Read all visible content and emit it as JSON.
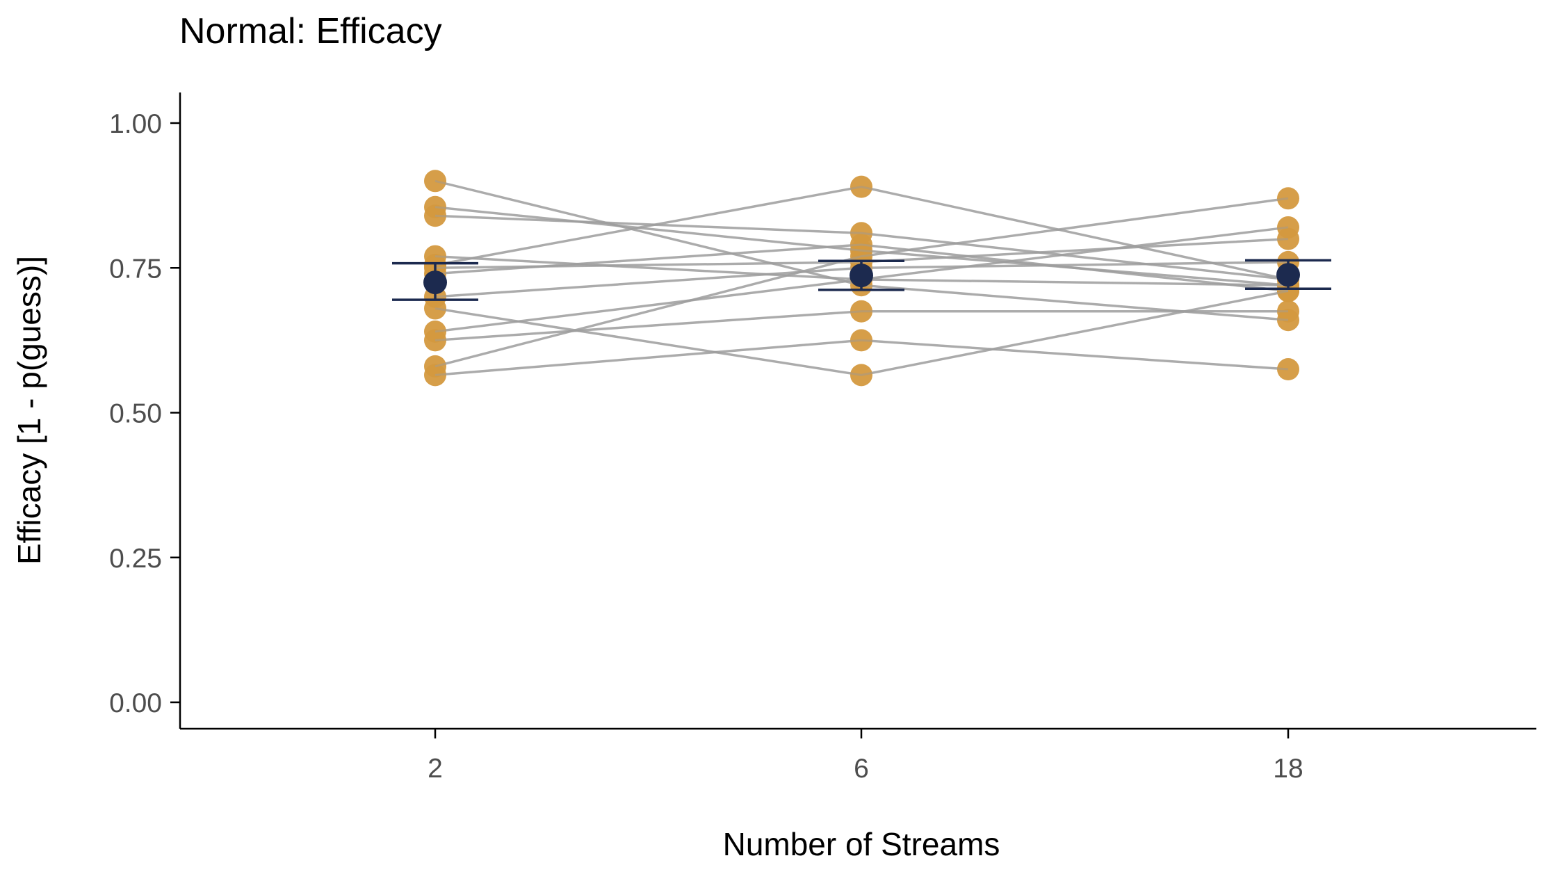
{
  "chart_data": {
    "type": "scatter",
    "title": "Normal: Efficacy",
    "xlabel": "Number of Streams",
    "ylabel": "Efficacy [1 - p(guess)]",
    "categories": [
      "2",
      "6",
      "18"
    ],
    "yticks": [
      "0.00",
      "0.25",
      "0.50",
      "0.75",
      "1.00"
    ],
    "ytick_values": [
      0,
      0.25,
      0.5,
      0.75,
      1.0
    ],
    "ylim": [
      -0.05,
      1.05
    ],
    "grid": false,
    "legend": "none",
    "colors": {
      "participant_point": "#d4993f",
      "participant_line": "#9e9e9e",
      "mean": "#1c2a4f"
    },
    "participants": [
      {
        "values": [
          0.9,
          0.72,
          0.66
        ]
      },
      {
        "values": [
          0.855,
          0.78,
          0.72
        ]
      },
      {
        "values": [
          0.84,
          0.81,
          0.73
        ]
      },
      {
        "values": [
          0.77,
          0.73,
          0.72
        ]
      },
      {
        "values": [
          0.755,
          0.89,
          0.73
        ]
      },
      {
        "values": [
          0.74,
          0.79,
          0.71
        ]
      },
      {
        "values": [
          0.7,
          0.75,
          0.76
        ]
      },
      {
        "values": [
          0.64,
          0.73,
          0.82
        ]
      },
      {
        "values": [
          0.625,
          0.675,
          0.675
        ]
      },
      {
        "values": [
          0.58,
          0.77,
          0.87
        ]
      },
      {
        "values": [
          0.565,
          0.625,
          0.575
        ]
      },
      {
        "values": [
          0.68,
          0.565,
          0.71
        ]
      },
      {
        "values": [
          0.75,
          0.76,
          0.8
        ]
      }
    ],
    "means": [
      {
        "value": 0.725,
        "lower": 0.695,
        "upper": 0.758
      },
      {
        "value": 0.737,
        "lower": 0.712,
        "upper": 0.762
      },
      {
        "value": 0.738,
        "lower": 0.714,
        "upper": 0.763
      }
    ]
  }
}
